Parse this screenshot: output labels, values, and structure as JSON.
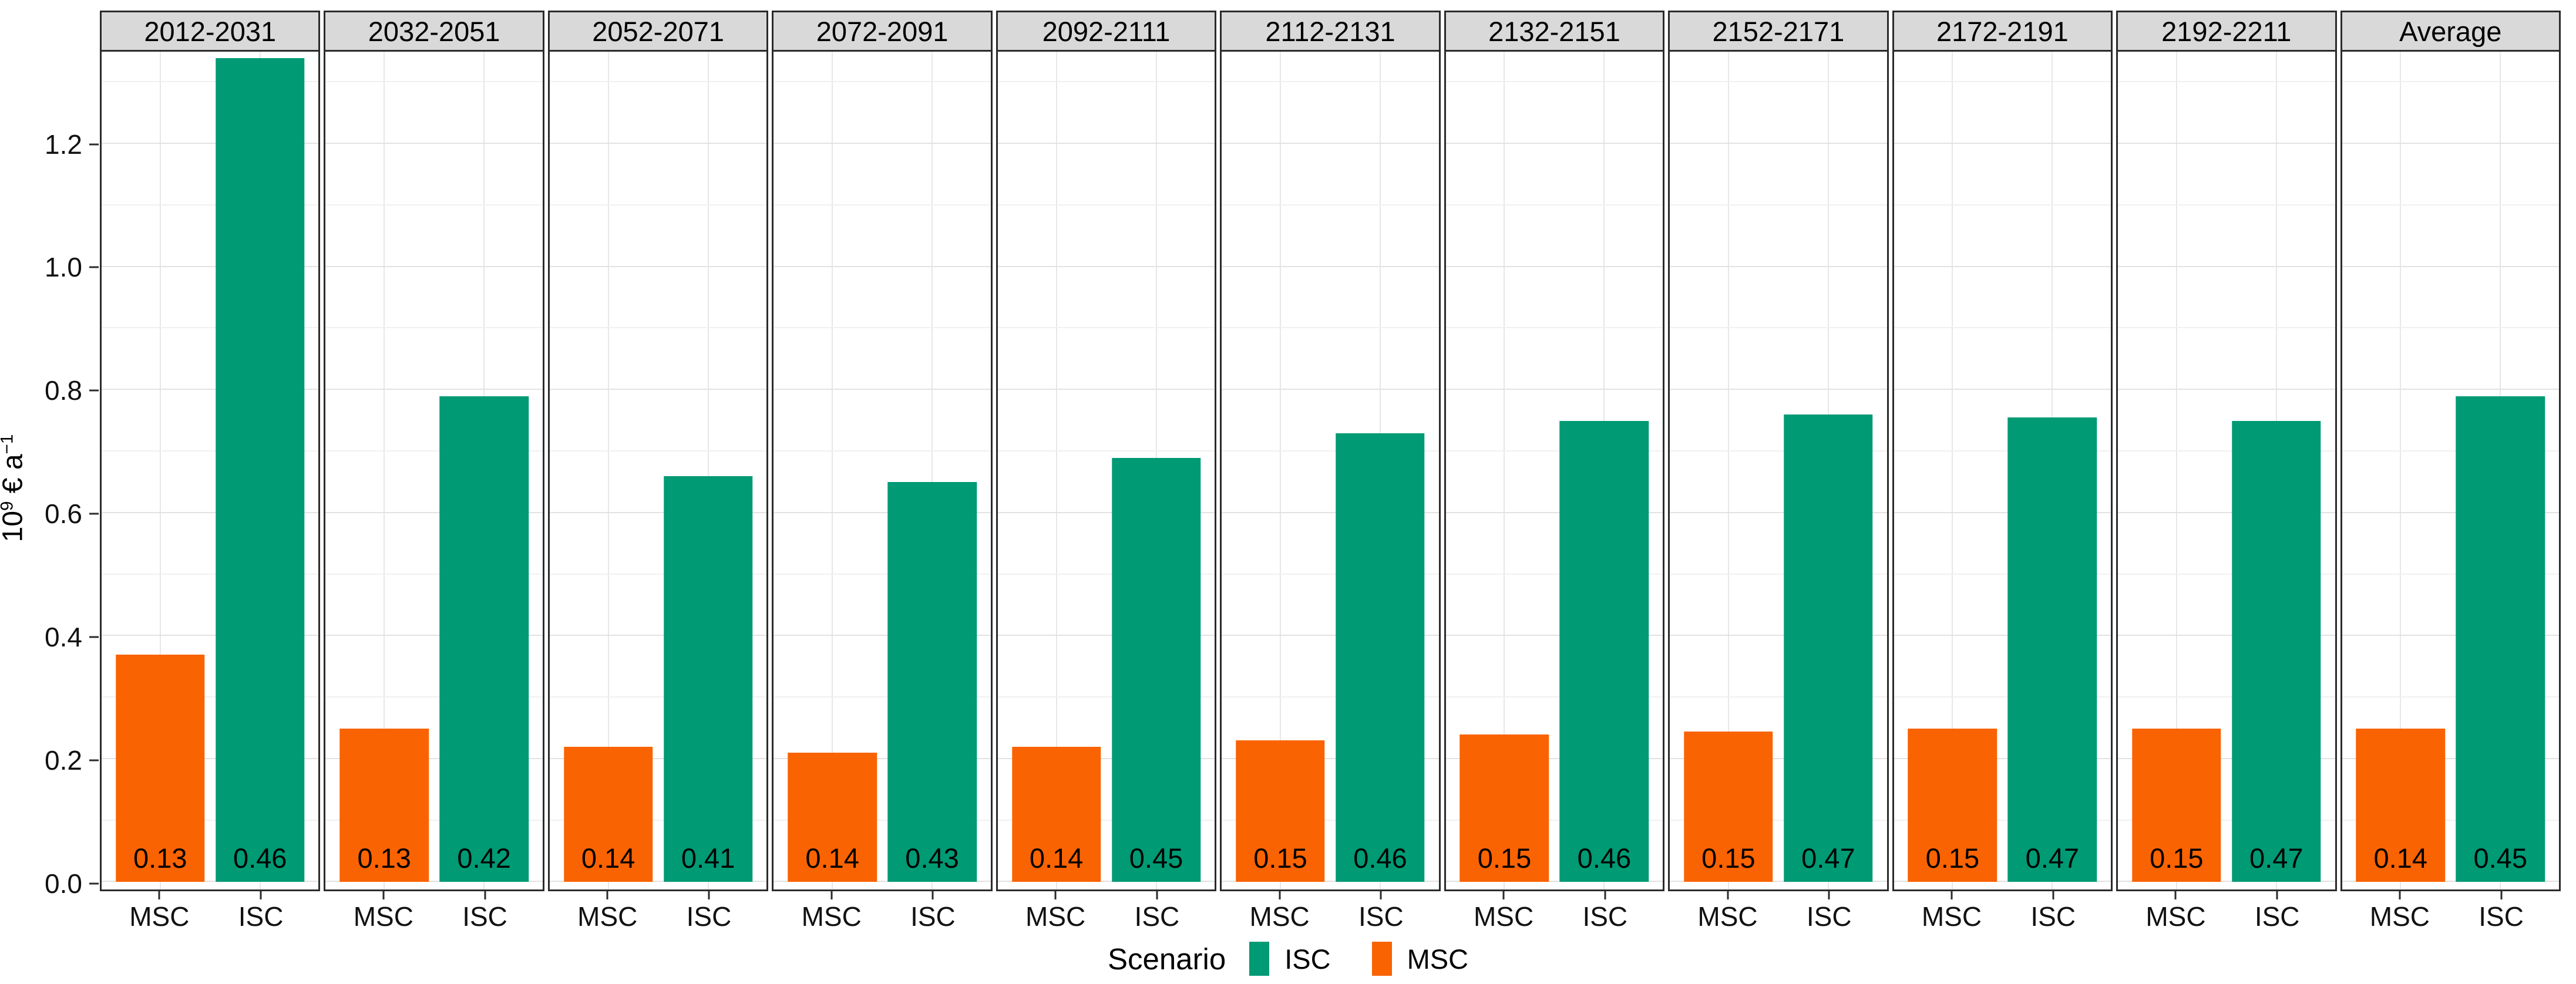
{
  "y_axis": {
    "title": {
      "mantissa": "10",
      "exponent": "9",
      "unit": " € a",
      "unit_exponent": "−1"
    },
    "ticks": [
      "0.0",
      "0.2",
      "0.4",
      "0.6",
      "0.8",
      "1.0",
      "1.2"
    ]
  },
  "x_axis": {
    "categories": [
      "MSC",
      "ISC"
    ]
  },
  "legend": {
    "title": "Scenario",
    "items": [
      {
        "label": "ISC",
        "color": "#009a74"
      },
      {
        "label": "MSC",
        "color": "#f96302"
      }
    ]
  },
  "colors": {
    "isc_bar": "#009a74",
    "msc_bar": "#f96302",
    "strip_background": "#d9d9d9",
    "panel_border": "#2b2b2b",
    "grid_major": "#e2e2e2",
    "grid_minor": "#f0f0f0"
  },
  "panels": [
    {
      "period": "2012-2031",
      "msc": {
        "height": 0.37,
        "label": "0.13"
      },
      "isc": {
        "height": 1.34,
        "label": "0.46"
      }
    },
    {
      "period": "2032-2051",
      "msc": {
        "height": 0.25,
        "label": "0.13"
      },
      "isc": {
        "height": 0.79,
        "label": "0.42"
      }
    },
    {
      "period": "2052-2071",
      "msc": {
        "height": 0.22,
        "label": "0.14"
      },
      "isc": {
        "height": 0.66,
        "label": "0.41"
      }
    },
    {
      "period": "2072-2091",
      "msc": {
        "height": 0.21,
        "label": "0.14"
      },
      "isc": {
        "height": 0.65,
        "label": "0.43"
      }
    },
    {
      "period": "2092-2111",
      "msc": {
        "height": 0.22,
        "label": "0.14"
      },
      "isc": {
        "height": 0.69,
        "label": "0.45"
      }
    },
    {
      "period": "2112-2131",
      "msc": {
        "height": 0.23,
        "label": "0.15"
      },
      "isc": {
        "height": 0.73,
        "label": "0.46"
      }
    },
    {
      "period": "2132-2151",
      "msc": {
        "height": 0.24,
        "label": "0.15"
      },
      "isc": {
        "height": 0.75,
        "label": "0.46"
      }
    },
    {
      "period": "2152-2171",
      "msc": {
        "height": 0.245,
        "label": "0.15"
      },
      "isc": {
        "height": 0.76,
        "label": "0.47"
      }
    },
    {
      "period": "2172-2191",
      "msc": {
        "height": 0.25,
        "label": "0.15"
      },
      "isc": {
        "height": 0.755,
        "label": "0.47"
      }
    },
    {
      "period": "2192-2211",
      "msc": {
        "height": 0.25,
        "label": "0.15"
      },
      "isc": {
        "height": 0.75,
        "label": "0.47"
      }
    },
    {
      "period": "Average",
      "msc": {
        "height": 0.25,
        "label": "0.14"
      },
      "isc": {
        "height": 0.79,
        "label": "0.45"
      }
    }
  ],
  "chart_data": {
    "type": "bar",
    "facets": [
      "2012-2031",
      "2032-2051",
      "2052-2071",
      "2072-2091",
      "2092-2111",
      "2112-2131",
      "2132-2151",
      "2152-2171",
      "2172-2191",
      "2192-2211",
      "Average"
    ],
    "categories": [
      "MSC",
      "ISC"
    ],
    "series": [
      {
        "name": "MSC",
        "color": "#f96302",
        "values": [
          0.37,
          0.25,
          0.22,
          0.21,
          0.22,
          0.23,
          0.24,
          0.245,
          0.25,
          0.25,
          0.25
        ],
        "bar_labels": [
          "0.13",
          "0.13",
          "0.14",
          "0.14",
          "0.14",
          "0.15",
          "0.15",
          "0.15",
          "0.15",
          "0.15",
          "0.14"
        ]
      },
      {
        "name": "ISC",
        "color": "#009a74",
        "values": [
          1.34,
          0.79,
          0.66,
          0.65,
          0.69,
          0.73,
          0.75,
          0.76,
          0.755,
          0.75,
          0.79
        ],
        "bar_labels": [
          "0.46",
          "0.42",
          "0.41",
          "0.43",
          "0.45",
          "0.46",
          "0.46",
          "0.47",
          "0.47",
          "0.47",
          "0.45"
        ]
      }
    ],
    "xlabel": "Scenario",
    "ylabel": "10^9 € a^-1",
    "ylim": [
      0,
      1.35
    ],
    "yticks": [
      0.0,
      0.2,
      0.4,
      0.6,
      0.8,
      1.0,
      1.2
    ],
    "grid": true,
    "legend_title": "Scenario",
    "legend_position": "bottom"
  }
}
